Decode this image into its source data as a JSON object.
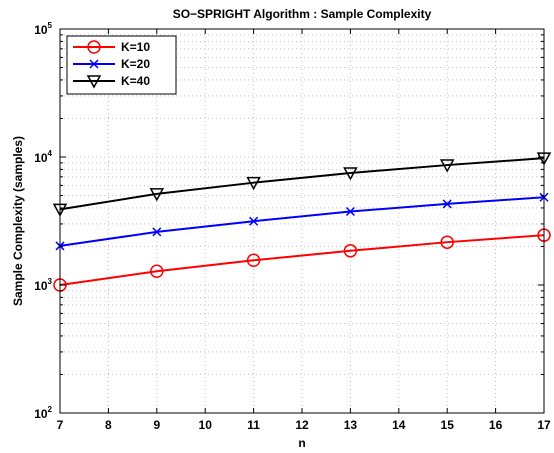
{
  "chart_data": {
    "type": "line",
    "title": "SO−SPRIGHT Algorithm : Sample Complexity",
    "xlabel": "n",
    "ylabel": "Sample Complexity (samples)",
    "xlim": [
      7,
      17
    ],
    "ylim": [
      100,
      100000
    ],
    "yscale": "log",
    "grid": true,
    "legend_position": "top-left",
    "x_ticks": [
      "7",
      "8",
      "9",
      "10",
      "11",
      "12",
      "13",
      "14",
      "15",
      "16",
      "17"
    ],
    "y_ticks": [
      {
        "base": "10",
        "exp": "2"
      },
      {
        "base": "10",
        "exp": "3"
      },
      {
        "base": "10",
        "exp": "4"
      },
      {
        "base": "10",
        "exp": "5"
      }
    ],
    "x": [
      7,
      9,
      11,
      13,
      15,
      17
    ],
    "series": [
      {
        "name": "K=10",
        "color": "#ff0000",
        "marker": "circle",
        "values": [
          1000,
          1280,
          1560,
          1850,
          2160,
          2450
        ]
      },
      {
        "name": "K=20",
        "color": "#0000ff",
        "marker": "x",
        "values": [
          2020,
          2600,
          3150,
          3750,
          4300,
          4850
        ]
      },
      {
        "name": "K=40",
        "color": "#000000",
        "marker": "triangle-down",
        "values": [
          3900,
          5150,
          6300,
          7500,
          8650,
          9800
        ]
      }
    ]
  }
}
